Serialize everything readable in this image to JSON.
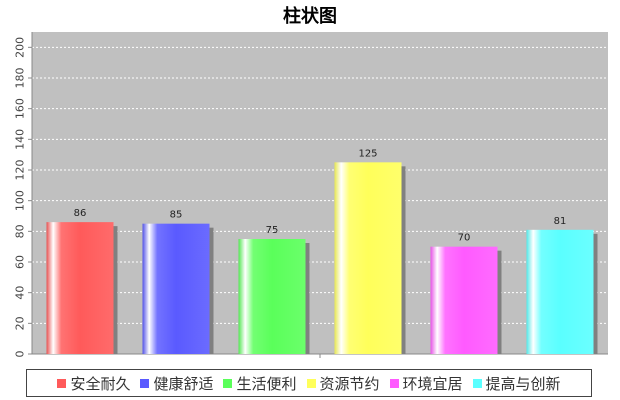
{
  "chart_data": {
    "type": "bar",
    "title": "柱状图",
    "categories": [
      "安全耐久",
      "健康舒适",
      "生活便利",
      "资源节约",
      "环境宜居",
      "提高与创新"
    ],
    "values": [
      86,
      85,
      75,
      125,
      70,
      81
    ],
    "data_labels": [
      "86",
      "85",
      "75",
      "125",
      "70",
      "81"
    ],
    "colors": [
      "#ff5a5a",
      "#5a5aff",
      "#5aff5a",
      "#ffff5a",
      "#ff5aff",
      "#5affff"
    ],
    "ylim": [
      0,
      210
    ],
    "yticks": [
      0,
      20,
      40,
      60,
      80,
      100,
      120,
      140,
      160,
      180,
      200
    ],
    "ytick_labels": [
      "0",
      "20",
      "40",
      "60",
      "80",
      "100",
      "120",
      "140",
      "160",
      "180",
      "200"
    ],
    "grid": true,
    "plot_background": "#c0c0c0",
    "legend_position": "bottom",
    "xlabel": "",
    "ylabel": ""
  }
}
